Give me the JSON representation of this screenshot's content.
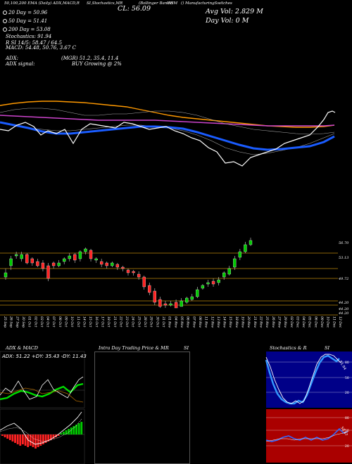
{
  "header": {
    "legend_text": "50,100,200 EMA (Daily) ADX,MACD,R",
    "stochastic_text": "SI,Stochastics,MR",
    "cl_label": "CL: 56.09",
    "bands_text": "(Bollinger Bands)",
    "symbol_label": "UNM",
    "company_text": "() ManufacturingSwitches",
    "avg_vol": "Avg Vol: 2.829 M",
    "day_vol": "Day Vol: 0   M"
  },
  "stats": {
    "dma20": "20 Day = 50.96",
    "dma50": "50 Day = 51.41",
    "dma200": "200 Day = 53.08",
    "stochastics": "Stochastics: 91.94",
    "rsi": "R                   SI 14/5: 58.47 / 64.5",
    "macd": "MACD: 54.48,  50.76,  3.67 C"
  },
  "adx": {
    "label": "ADX:",
    "value": "(MGR) 51.2,  35.4,  11.4",
    "signal_label": "ADX  signal:",
    "signal_value": "BUY Growing @ 2%"
  },
  "price_levels": {
    "top": "56.70",
    "mid1": "53.13",
    "mid2": "49.72",
    "low1": "44.20",
    "low2": "44.20",
    "low3": "44.20"
  },
  "dates": [
    "25 Sep",
    "26 Sep",
    "27 Sep",
    "30 Sep",
    "01 Oct",
    "02 Oct",
    "03 Oct",
    "04 Oct",
    "07 Oct",
    "08 Oct",
    "09 Oct",
    "10 Oct",
    "11 Oct",
    "14 Oct",
    "15 Oct",
    "16 Oct",
    "17 Oct",
    "18 Oct",
    "21 Oct",
    "22 Oct",
    "23 Oct",
    "24 Oct",
    "25 Oct",
    "28 Oct",
    "29 Oct",
    "30 Oct",
    "31 Oct",
    "01 Nov",
    "04 Nov",
    "05 Nov",
    "06 Nov",
    "07 Nov",
    "08 Nov",
    "11 Nov",
    "12 Nov",
    "13 Nov",
    "14 Nov",
    "15 Nov",
    "18 Nov",
    "19 Nov",
    "20 Nov",
    "21 Nov",
    "22 Nov",
    "25 Nov",
    "26 Nov",
    "27 Nov",
    "29 Nov",
    "02 Dec",
    "03 Dec",
    "04 Dec",
    "05 Dec",
    "06 Dec",
    "09 Dec",
    "10 Dec",
    "11 Dec",
    "12 Dec"
  ],
  "panels": {
    "adx_macd_title": "ADX  & MACD",
    "adx_readout": "ADX: 51.22  +DY: 35.43 -DY: 11.43",
    "intraday_title": "Intra  Day Trading Price  & MR",
    "intraday_si": "SI",
    "stoch_title": "Stochastics & R",
    "stoch_si": "SI",
    "stoch_value": "91.94",
    "rsi_value": "58.47",
    "stoch_levels": [
      "80",
      "50",
      "20"
    ],
    "rsi_levels": [
      "80",
      "50",
      "20"
    ]
  },
  "colors": {
    "ema_orange": "#ff9900",
    "ema_blue": "#1a5cff",
    "bb_magenta": "#cc44cc",
    "candle_up": "#00cc00",
    "candle_down": "#ff2222",
    "level_line": "#b8860b",
    "stoch_bg": "#000088",
    "rsi_bg": "#aa0000"
  }
}
